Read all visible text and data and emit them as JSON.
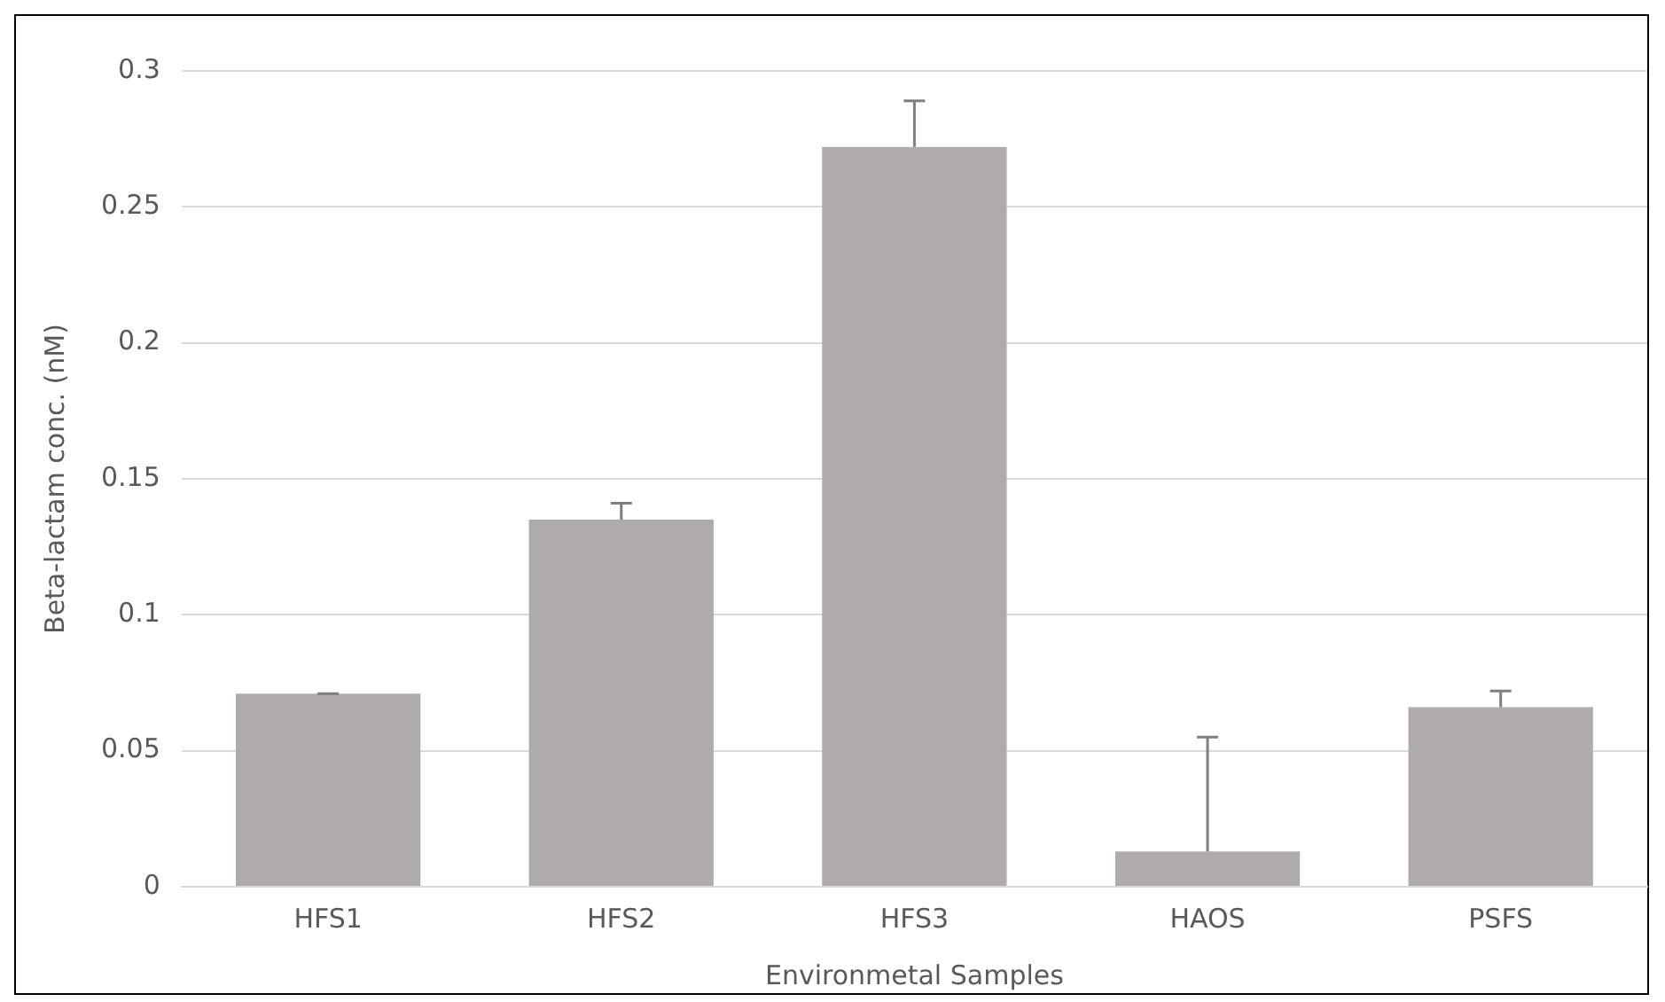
{
  "chart_data": {
    "type": "bar",
    "xlabel": "Environmetal Samples",
    "ylabel": "Beta-lactam conc. (nM)",
    "categories": [
      "HFS1",
      "HFS2",
      "HFS3",
      "HAOS",
      "PSFS"
    ],
    "values": [
      0.071,
      0.135,
      0.272,
      0.013,
      0.066
    ],
    "errors": [
      [
        0.071,
        0.071
      ],
      [
        0.135,
        0.141
      ],
      [
        0.272,
        0.289
      ],
      [
        0.013,
        0.055
      ],
      [
        0.066,
        0.072
      ]
    ],
    "color": "#afabab",
    "ylim": [
      0,
      0.3
    ],
    "yticks": [
      0,
      0.05,
      0.1,
      0.15,
      0.2,
      0.25,
      0.3
    ],
    "grid": "y",
    "legend": false
  }
}
